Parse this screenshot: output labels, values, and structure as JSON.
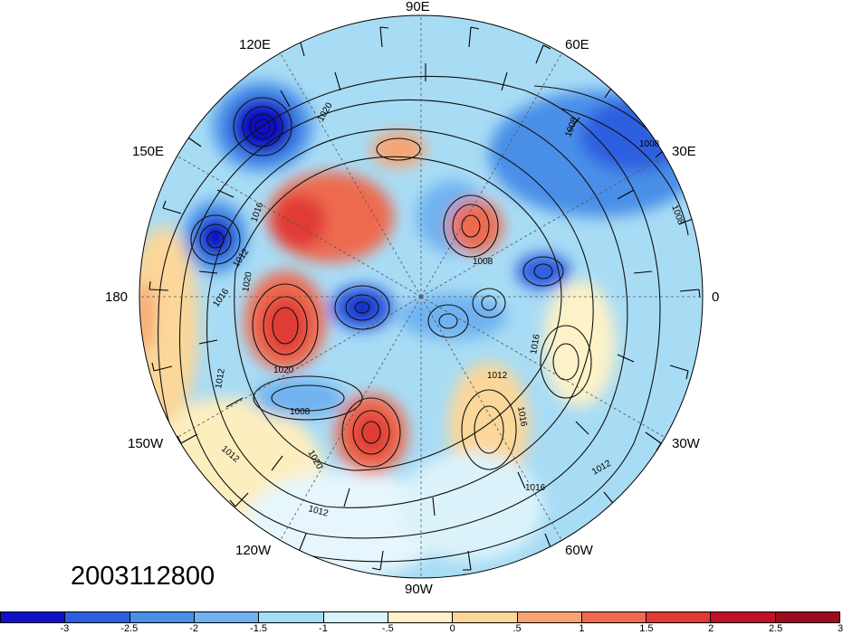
{
  "longitude_labels": [
    {
      "id": "90e",
      "text": "90E"
    },
    {
      "id": "60e",
      "text": "60E"
    },
    {
      "id": "30e",
      "text": "30E"
    },
    {
      "id": "0",
      "text": "0"
    },
    {
      "id": "30w",
      "text": "30W"
    },
    {
      "id": "60w",
      "text": "60W"
    },
    {
      "id": "90w",
      "text": "90W"
    },
    {
      "id": "120w",
      "text": "120W"
    },
    {
      "id": "150w",
      "text": "150W"
    },
    {
      "id": "180",
      "text": "180"
    },
    {
      "id": "150e",
      "text": "150E"
    },
    {
      "id": "120e",
      "text": "120E"
    }
  ],
  "date_stamp": "2003112800",
  "isobar_labels": [
    "1008",
    "1008",
    "1016",
    "1012",
    "1016",
    "1020",
    "1020",
    "1008",
    "1012",
    "1008",
    "1020",
    "1012",
    "1008",
    "1016",
    "1016",
    "1012",
    "1016",
    "1020",
    "1012",
    "1012"
  ],
  "colorbar": {
    "colors": [
      "#1010c8",
      "#2e5fe0",
      "#4a8fe8",
      "#70b2f0",
      "#a4ddf7",
      "#dbf3fb",
      "#fdf2c8",
      "#fbd79a",
      "#f7a472",
      "#ee6a50",
      "#e03a34",
      "#c0102a",
      "#9c0c1e"
    ],
    "tick_labels": [
      "-3",
      "-2.5",
      "-2",
      "-1.5",
      "-1",
      "-.5",
      "0",
      ".5",
      "1",
      "1.5",
      "2",
      "2.5",
      "3"
    ]
  }
}
